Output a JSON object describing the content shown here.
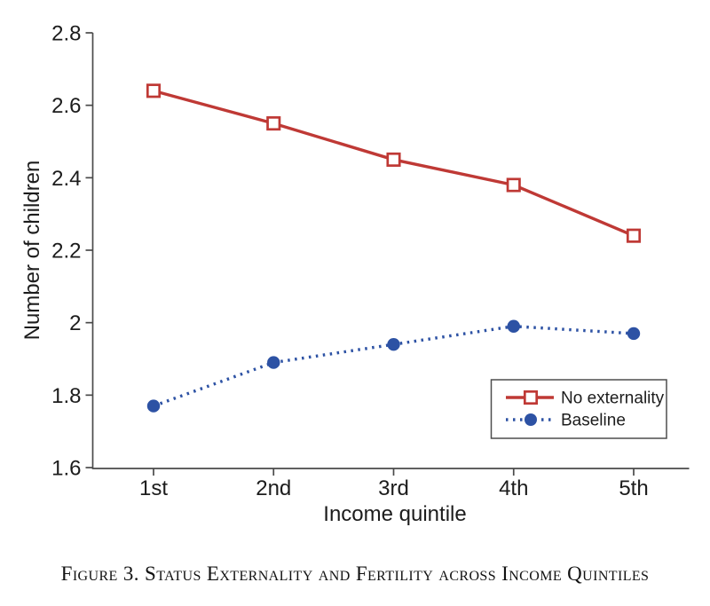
{
  "figure": {
    "caption": "Figure 3. Status Externality and Fertility across Income Quintiles"
  },
  "chart_data": {
    "type": "line",
    "categories": [
      "1st",
      "2nd",
      "3rd",
      "4th",
      "5th"
    ],
    "series": [
      {
        "name": "No externality",
        "values": [
          2.64,
          2.55,
          2.45,
          2.38,
          2.24
        ],
        "color": "#bf3935",
        "line": "solid",
        "marker": "open-square"
      },
      {
        "name": "Baseline",
        "values": [
          1.77,
          1.89,
          1.94,
          1.99,
          1.97
        ],
        "color": "#2d52a4",
        "line": "dotted",
        "marker": "filled-circle"
      }
    ],
    "title": "",
    "xlabel": "Income quintile",
    "ylabel": "Number of children",
    "ylim": [
      1.6,
      2.8
    ],
    "yticks": [
      "1.6",
      "1.8",
      "2",
      "2.2",
      "2.4",
      "2.6",
      "2.8"
    ],
    "grid": false,
    "legend_position": "inside-lower-right",
    "axis_color": "#4a4a4a",
    "text_color": "#1c1c1c"
  }
}
